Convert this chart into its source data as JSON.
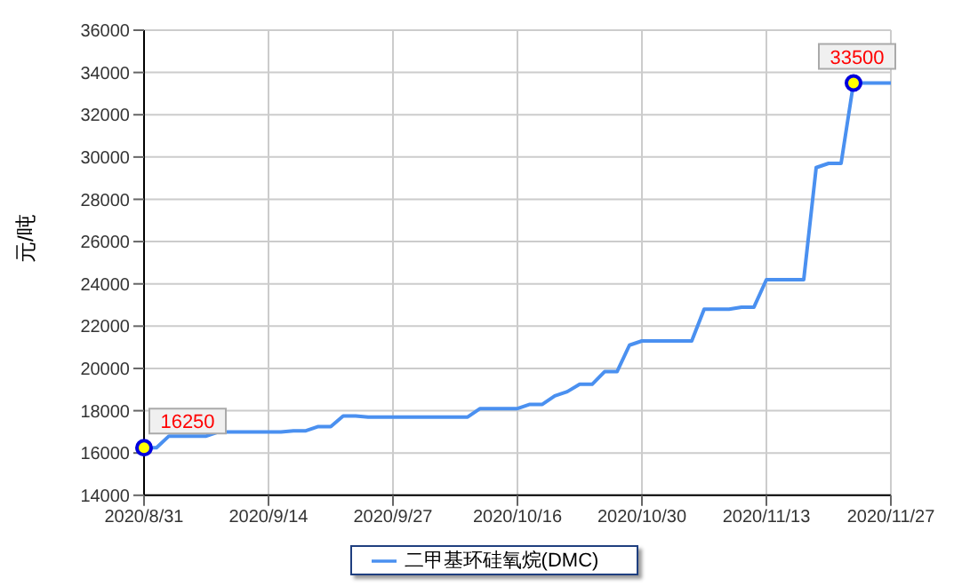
{
  "chart_data": {
    "type": "line",
    "ylabel": "元/吨",
    "categories": [
      "2020/8/31",
      null,
      null,
      null,
      null,
      null,
      null,
      null,
      null,
      null,
      "2020/9/14",
      null,
      null,
      null,
      null,
      null,
      null,
      null,
      null,
      null,
      "2020/9/27",
      null,
      null,
      null,
      null,
      null,
      null,
      null,
      null,
      null,
      "2020/10/16",
      null,
      null,
      null,
      null,
      null,
      null,
      null,
      null,
      null,
      "2020/10/30",
      null,
      null,
      null,
      null,
      null,
      null,
      null,
      null,
      null,
      "2020/11/13",
      null,
      null,
      null,
      null,
      null,
      null,
      null,
      null,
      null,
      "2020/11/27"
    ],
    "series": [
      {
        "name": "二甲基环硅氧烷(DMC)",
        "color": "#4a90f0",
        "values": [
          16250,
          16250,
          16800,
          16800,
          16800,
          16800,
          17000,
          17000,
          17000,
          17000,
          17000,
          17000,
          17050,
          17050,
          17250,
          17250,
          17750,
          17750,
          17700,
          17700,
          17700,
          17700,
          17700,
          17700,
          17700,
          17700,
          17700,
          18100,
          18100,
          18100,
          18100,
          18300,
          18300,
          18700,
          18900,
          19250,
          19250,
          19850,
          19850,
          21100,
          21300,
          21300,
          21300,
          21300,
          21300,
          22800,
          22800,
          22800,
          22900,
          22900,
          24200,
          24200,
          24200,
          24200,
          29500,
          29700,
          29700,
          33500,
          33500,
          33500,
          33500
        ],
        "value_labels": [
          "16250",
          null,
          null,
          null,
          null,
          null,
          null,
          null,
          null,
          null,
          null,
          null,
          null,
          null,
          null,
          null,
          null,
          null,
          null,
          null,
          null,
          null,
          null,
          null,
          null,
          null,
          null,
          null,
          null,
          null,
          null,
          null,
          null,
          null,
          null,
          null,
          null,
          null,
          null,
          null,
          null,
          null,
          null,
          null,
          null,
          null,
          null,
          null,
          null,
          null,
          null,
          null,
          null,
          null,
          null,
          null,
          null,
          "33500",
          null,
          null,
          null
        ]
      }
    ],
    "ylim": [
      14000,
      36000
    ],
    "yticks": [
      14000,
      16000,
      18000,
      20000,
      22000,
      24000,
      26000,
      28000,
      30000,
      32000,
      34000,
      36000
    ],
    "grid": true,
    "legend": "bottom"
  }
}
